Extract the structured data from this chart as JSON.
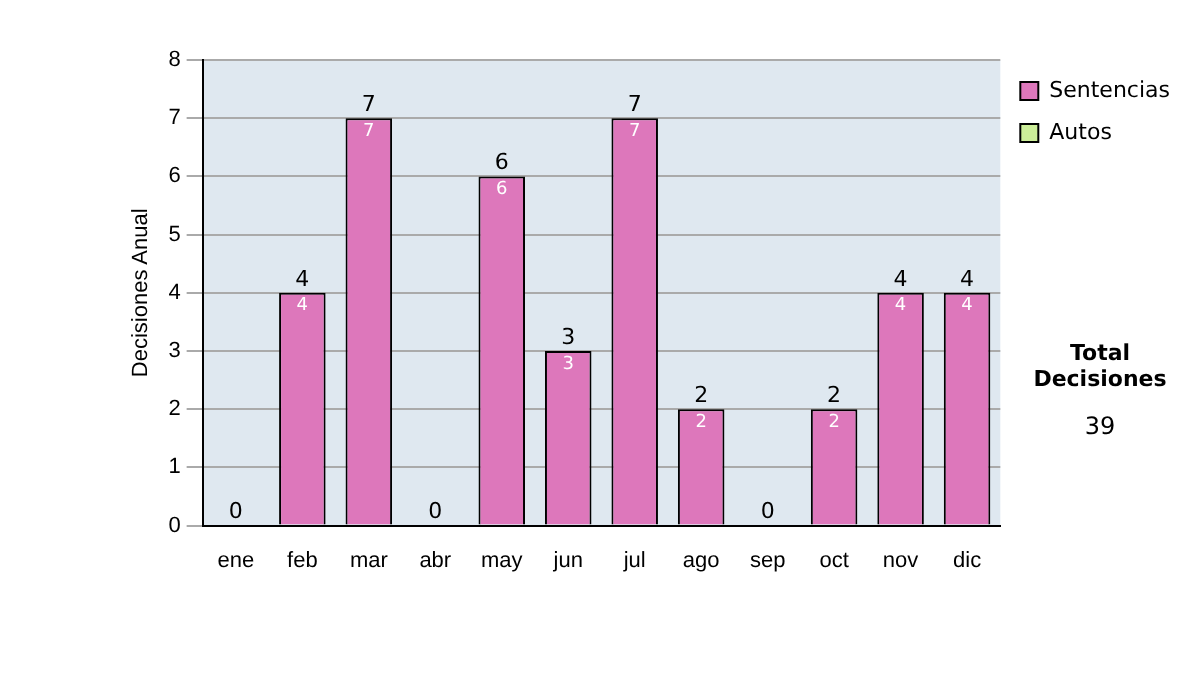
{
  "chart_data": {
    "type": "bar",
    "stacked": true,
    "ylabel": "Decisiones Anual",
    "categories": [
      "ene",
      "feb",
      "mar",
      "abr",
      "may",
      "jun",
      "jul",
      "ago",
      "sep",
      "oct",
      "nov",
      "dic"
    ],
    "series": [
      {
        "name": "Sentencias",
        "color": "#dd77bb",
        "values": [
          0,
          4,
          7,
          0,
          6,
          3,
          7,
          2,
          0,
          2,
          4,
          4
        ],
        "value_labels": [
          null,
          "4",
          "7",
          null,
          "6",
          "3",
          "7",
          "2",
          null,
          "2",
          "4",
          "4"
        ]
      },
      {
        "name": "Autos",
        "color": "#ccee99",
        "values": [
          0,
          0,
          0,
          0,
          0,
          0,
          0,
          0,
          0,
          0,
          0,
          0
        ]
      }
    ],
    "totals": [
      "0",
      "4",
      "7",
      "0",
      "6",
      "3",
      "7",
      "2",
      "0",
      "2",
      "4",
      "4"
    ],
    "ylim": [
      0,
      8
    ],
    "yticks": [
      0,
      1,
      2,
      3,
      4,
      5,
      6,
      7,
      8
    ],
    "grid": "y",
    "legend": "top right",
    "annotations": [
      "Total Decisiones",
      "39"
    ]
  }
}
